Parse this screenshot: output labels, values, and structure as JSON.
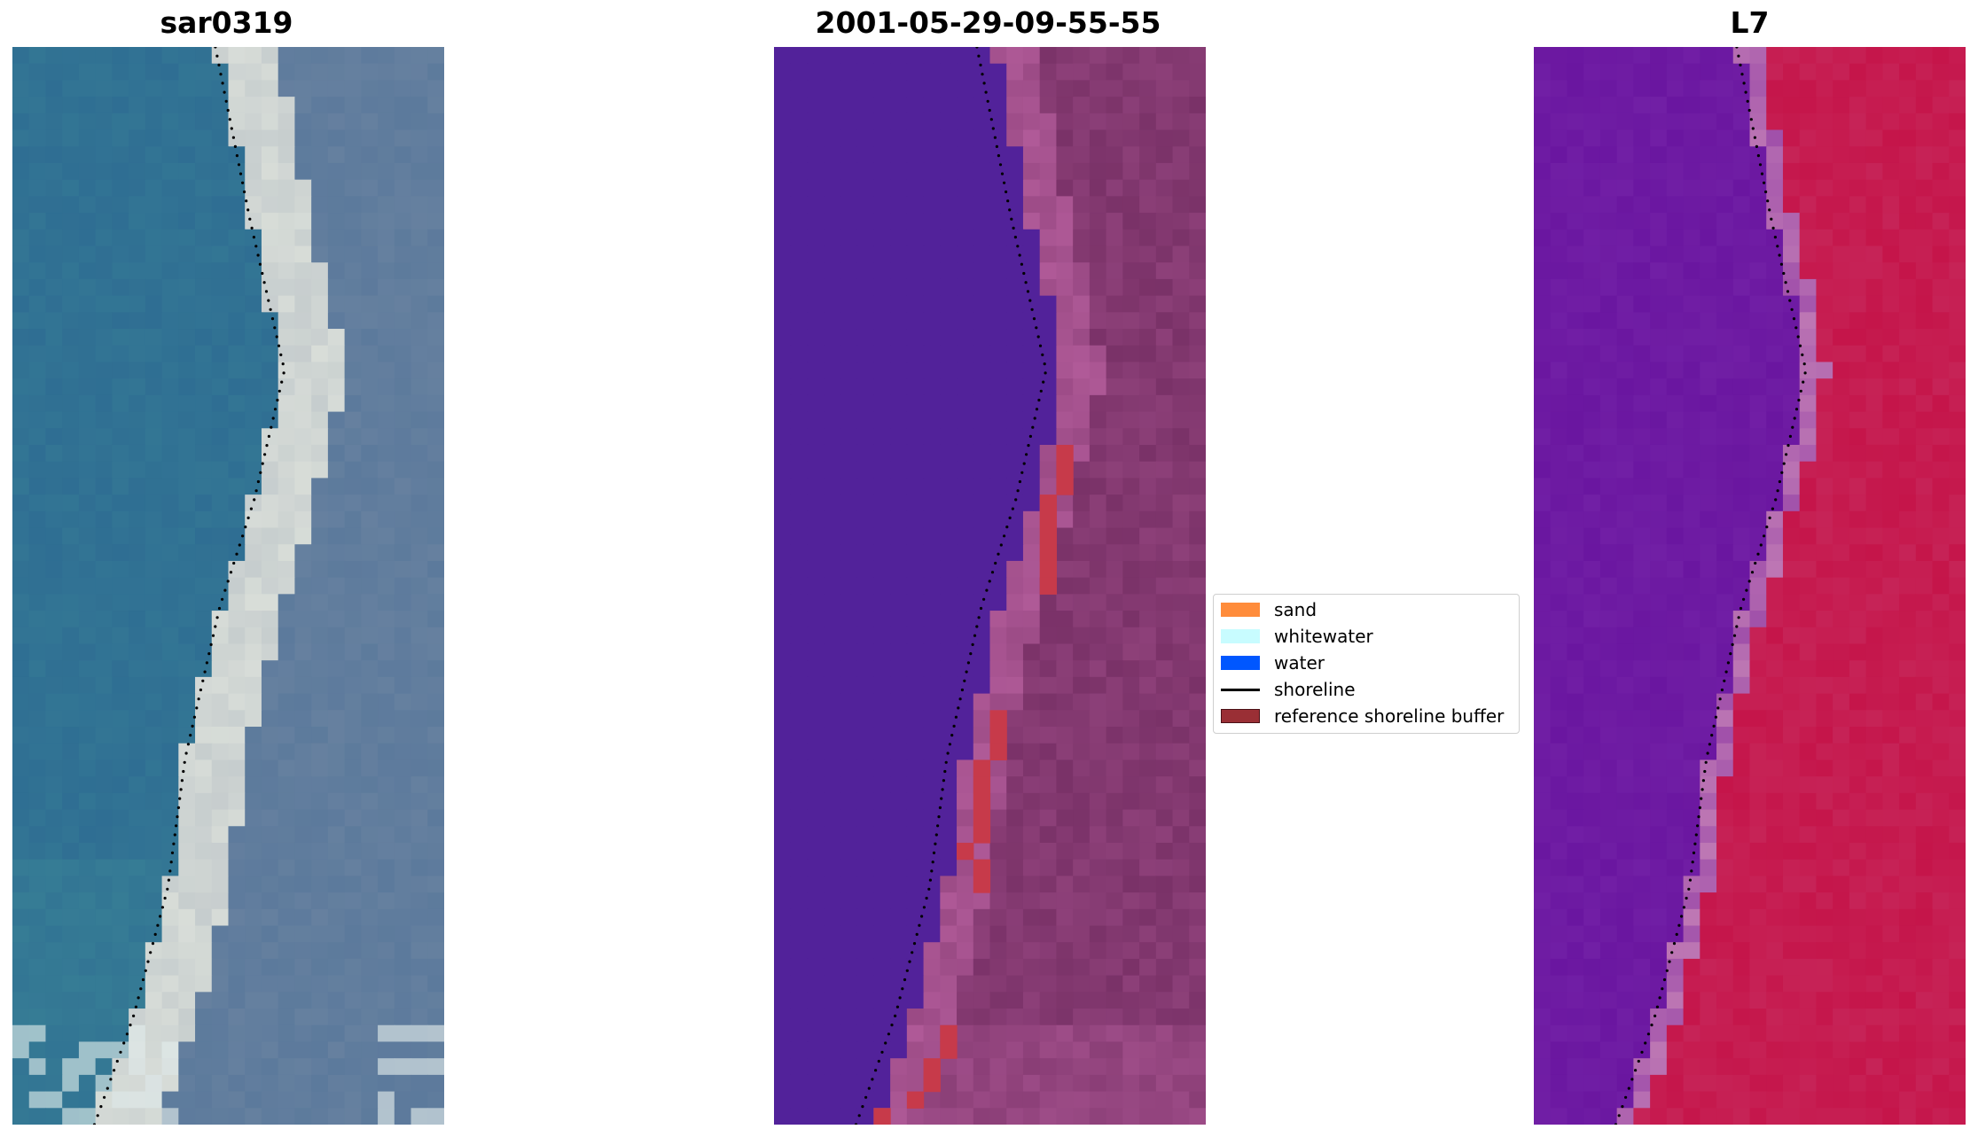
{
  "panels": [
    {
      "title": "sar0319"
    },
    {
      "title": "2001-05-29-09-55-55"
    },
    {
      "title": "L7"
    }
  ],
  "legend": {
    "items": [
      {
        "label": "sand",
        "color": "#ff8c3b",
        "kind": "patch"
      },
      {
        "label": "whitewater",
        "color": "#c8fcff",
        "kind": "patch"
      },
      {
        "label": "water",
        "color": "#0057ff",
        "kind": "patch"
      },
      {
        "label": "shoreline",
        "color": "#000000",
        "kind": "line"
      },
      {
        "label": "reference shoreline buffer",
        "color": "#9a2f35",
        "kind": "patch"
      }
    ]
  },
  "colors": {
    "rgb_water": "#2f6e93",
    "rgb_land": "#5c7a9c",
    "rgb_beach": "#d8ddd8",
    "class_water_overlay": "#52229a",
    "class_land": "#7a3268",
    "class_beach": "#b05a98",
    "buffer": "#c73a4a",
    "index_low": "#6a16a0",
    "index_high": "#c5154a",
    "shoreline": "#000000"
  }
}
